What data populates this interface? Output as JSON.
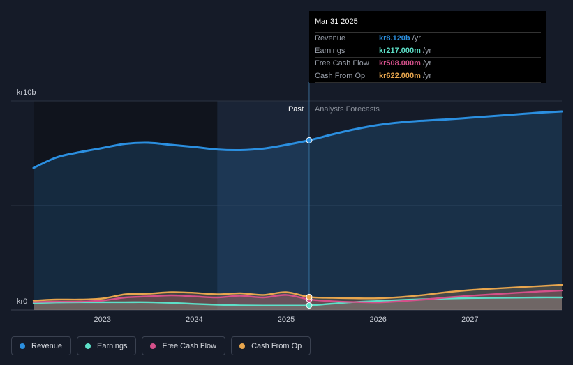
{
  "chart_data": {
    "type": "area",
    "y_top_label": "kr10b",
    "y_bottom_label": "kr0",
    "ylim": [
      0,
      10
    ],
    "y_unit": "kr billions",
    "x_ticks": [
      "2023",
      "2024",
      "2025",
      "2026",
      "2027"
    ],
    "x_tick_values": [
      2023.0,
      2024.0,
      2025.0,
      2026.0,
      2027.0
    ],
    "xlim": [
      2022.25,
      2028.0
    ],
    "past_label": "Past",
    "forecast_label": "Analysts Forecasts",
    "divider_x": 2025.25,
    "highlight_start_x": 2024.25,
    "series": [
      {
        "name": "Revenue",
        "color": "#2b8fe0",
        "x": [
          2022.25,
          2022.5,
          2022.75,
          2023.0,
          2023.25,
          2023.5,
          2023.75,
          2024.0,
          2024.25,
          2024.5,
          2024.75,
          2025.0,
          2025.25,
          2025.5,
          2025.75,
          2026.0,
          2026.25,
          2026.5,
          2026.75,
          2027.0,
          2027.25,
          2027.5,
          2027.75,
          2028.0
        ],
        "values": [
          6.8,
          7.3,
          7.55,
          7.75,
          7.95,
          8.0,
          7.9,
          7.8,
          7.68,
          7.65,
          7.72,
          7.9,
          8.12,
          8.4,
          8.65,
          8.85,
          8.98,
          9.06,
          9.12,
          9.2,
          9.28,
          9.36,
          9.44,
          9.5
        ]
      },
      {
        "name": "Earnings",
        "color": "#5de0c8",
        "x": [
          2022.25,
          2022.5,
          2022.75,
          2023.0,
          2023.25,
          2023.5,
          2023.75,
          2024.0,
          2024.25,
          2024.5,
          2024.75,
          2025.0,
          2025.25,
          2025.5,
          2025.75,
          2026.0,
          2026.25,
          2026.5,
          2026.75,
          2027.0,
          2027.25,
          2027.5,
          2027.75,
          2028.0
        ],
        "values": [
          0.33,
          0.36,
          0.37,
          0.37,
          0.37,
          0.37,
          0.34,
          0.29,
          0.25,
          0.22,
          0.21,
          0.21,
          0.217,
          0.3,
          0.38,
          0.43,
          0.48,
          0.52,
          0.55,
          0.57,
          0.58,
          0.59,
          0.6,
          0.6
        ]
      },
      {
        "name": "Free Cash Flow",
        "color": "#d4508a",
        "x": [
          2022.25,
          2022.5,
          2022.75,
          2023.0,
          2023.25,
          2023.5,
          2023.75,
          2024.0,
          2024.25,
          2024.5,
          2024.75,
          2025.0,
          2025.25,
          2025.5,
          2025.75,
          2026.0,
          2026.25,
          2026.5,
          2026.75,
          2027.0,
          2027.25,
          2027.5,
          2027.75,
          2028.0
        ],
        "values": [
          0.38,
          0.4,
          0.4,
          0.45,
          0.6,
          0.65,
          0.7,
          0.65,
          0.6,
          0.68,
          0.6,
          0.72,
          0.508,
          0.42,
          0.38,
          0.36,
          0.42,
          0.5,
          0.6,
          0.68,
          0.75,
          0.82,
          0.88,
          0.93
        ]
      },
      {
        "name": "Cash From Op",
        "color": "#e8a64e",
        "x": [
          2022.25,
          2022.5,
          2022.75,
          2023.0,
          2023.25,
          2023.5,
          2023.75,
          2024.0,
          2024.25,
          2024.5,
          2024.75,
          2025.0,
          2025.25,
          2025.5,
          2025.75,
          2026.0,
          2026.25,
          2026.5,
          2026.75,
          2027.0,
          2027.25,
          2027.5,
          2027.75,
          2028.0
        ],
        "values": [
          0.45,
          0.5,
          0.5,
          0.55,
          0.75,
          0.78,
          0.85,
          0.82,
          0.75,
          0.8,
          0.72,
          0.85,
          0.622,
          0.58,
          0.56,
          0.56,
          0.62,
          0.72,
          0.85,
          0.95,
          1.02,
          1.08,
          1.14,
          1.2
        ]
      }
    ],
    "tooltip": {
      "date": "Mar 31 2025",
      "rows": [
        {
          "label": "Revenue",
          "value": "kr8.120b",
          "unit": "/yr",
          "color": "#2b8fe0"
        },
        {
          "label": "Earnings",
          "value": "kr217.000m",
          "unit": "/yr",
          "color": "#5de0c8"
        },
        {
          "label": "Free Cash Flow",
          "value": "kr508.000m",
          "unit": "/yr",
          "color": "#d4508a"
        },
        {
          "label": "Cash From Op",
          "value": "kr622.000m",
          "unit": "/yr",
          "color": "#e8a64e"
        }
      ]
    },
    "legend_position": "bottom-left",
    "grid": true
  }
}
